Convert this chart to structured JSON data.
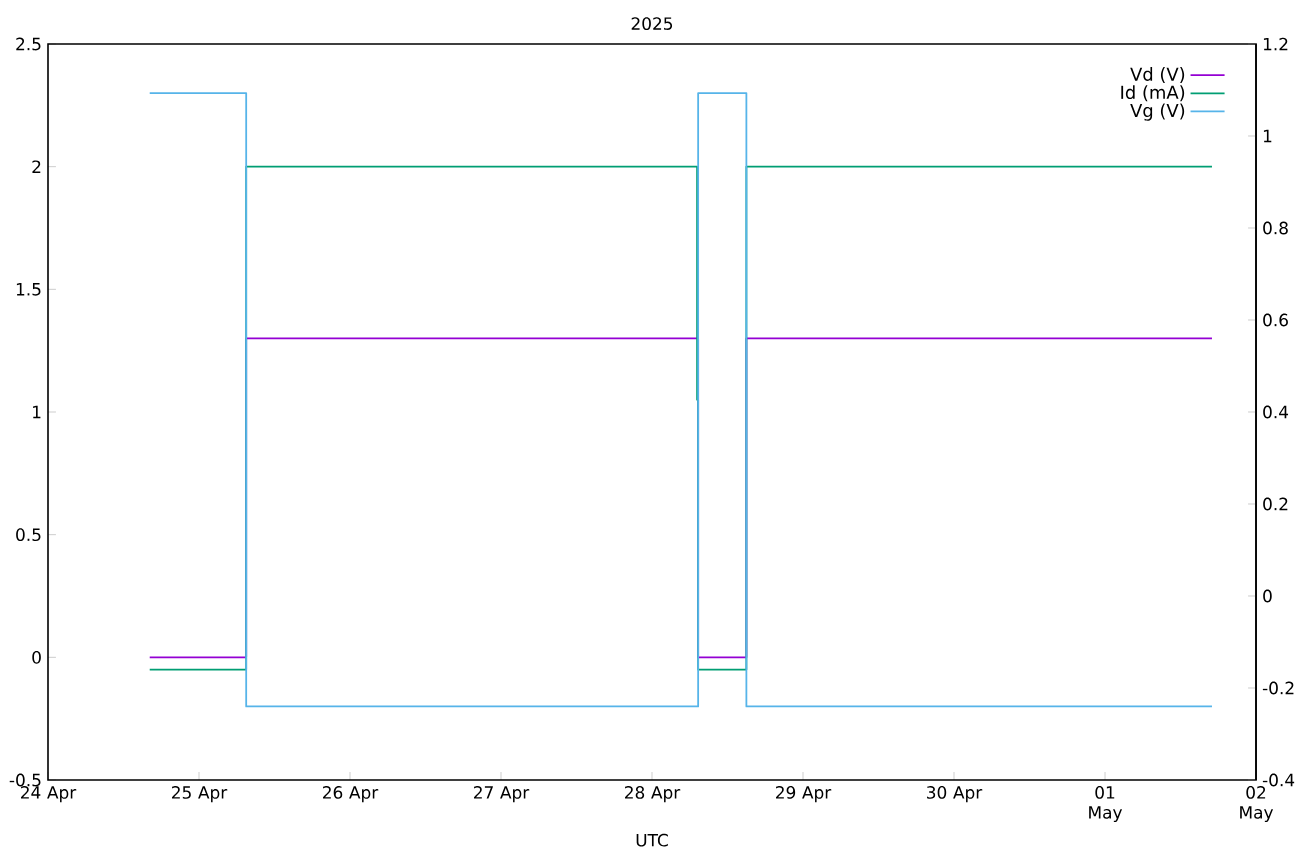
{
  "chart_data": {
    "type": "line",
    "title": "2025",
    "xlabel": "UTC",
    "xlim": [
      "2025-04-24",
      "2025-05-02"
    ],
    "xticks": [
      {
        "value": "2025-04-24",
        "label": "24 Apr"
      },
      {
        "value": "2025-04-25",
        "label": "25 Apr"
      },
      {
        "value": "2025-04-26",
        "label": "26 Apr"
      },
      {
        "value": "2025-04-27",
        "label": "27 Apr"
      },
      {
        "value": "2025-04-28",
        "label": "28 Apr"
      },
      {
        "value": "2025-04-29",
        "label": "29 Apr"
      },
      {
        "value": "2025-04-30",
        "label": "30 Apr"
      },
      {
        "value": "2025-05-01",
        "label": "01 May"
      },
      {
        "value": "2025-05-02",
        "label": "02 May"
      }
    ],
    "ylim": [
      -0.5,
      2.5
    ],
    "yticks": [
      -0.5,
      0,
      0.5,
      1,
      1.5,
      2,
      2.5
    ],
    "y2lim": [
      -0.4,
      1.2
    ],
    "y2ticks": [
      -0.4,
      -0.2,
      0,
      0.2,
      0.4,
      0.6,
      0.8,
      1,
      1.2
    ],
    "legend": "top right",
    "grid": false,
    "marker": "none",
    "line_style": "solid",
    "series": [
      {
        "name": "Vd (V)",
        "color": "#9400d3",
        "x": [
          "2025-04-24T16:10",
          "2025-04-25T07:30",
          "2025-04-25T07:30",
          "2025-04-28T07:20",
          "2025-04-28T07:20",
          "2025-04-28T15:00",
          "2025-04-28T15:00",
          "2025-05-01T17:00"
        ],
        "values": [
          0,
          0,
          1.3,
          1.3,
          0,
          0,
          1.3,
          1.3
        ]
      },
      {
        "name": "Id (mA)",
        "color": "#009e73",
        "x": [
          "2025-04-24T16:10",
          "2025-04-25T07:30",
          "2025-04-25T07:30",
          "2025-04-28T07:10",
          "2025-04-28T07:10",
          "2025-04-28T07:20",
          "2025-04-28T07:20",
          "2025-04-28T15:00",
          "2025-04-28T15:00",
          "2025-05-01T17:00"
        ],
        "values": [
          -0.05,
          -0.05,
          2,
          2,
          1.05,
          1.05,
          -0.05,
          -0.05,
          2,
          2
        ]
      },
      {
        "name": "Vg (V)",
        "color": "#56b4e9",
        "x": [
          "2025-04-24T16:10",
          "2025-04-25T07:30",
          "2025-04-25T07:30",
          "2025-04-28T07:20",
          "2025-04-28T07:20",
          "2025-04-28T15:00",
          "2025-04-28T15:00",
          "2025-05-01T17:00"
        ],
        "values": [
          2.3,
          2.3,
          -0.2,
          -0.2,
          2.3,
          2.3,
          -0.2,
          -0.2
        ]
      }
    ]
  }
}
